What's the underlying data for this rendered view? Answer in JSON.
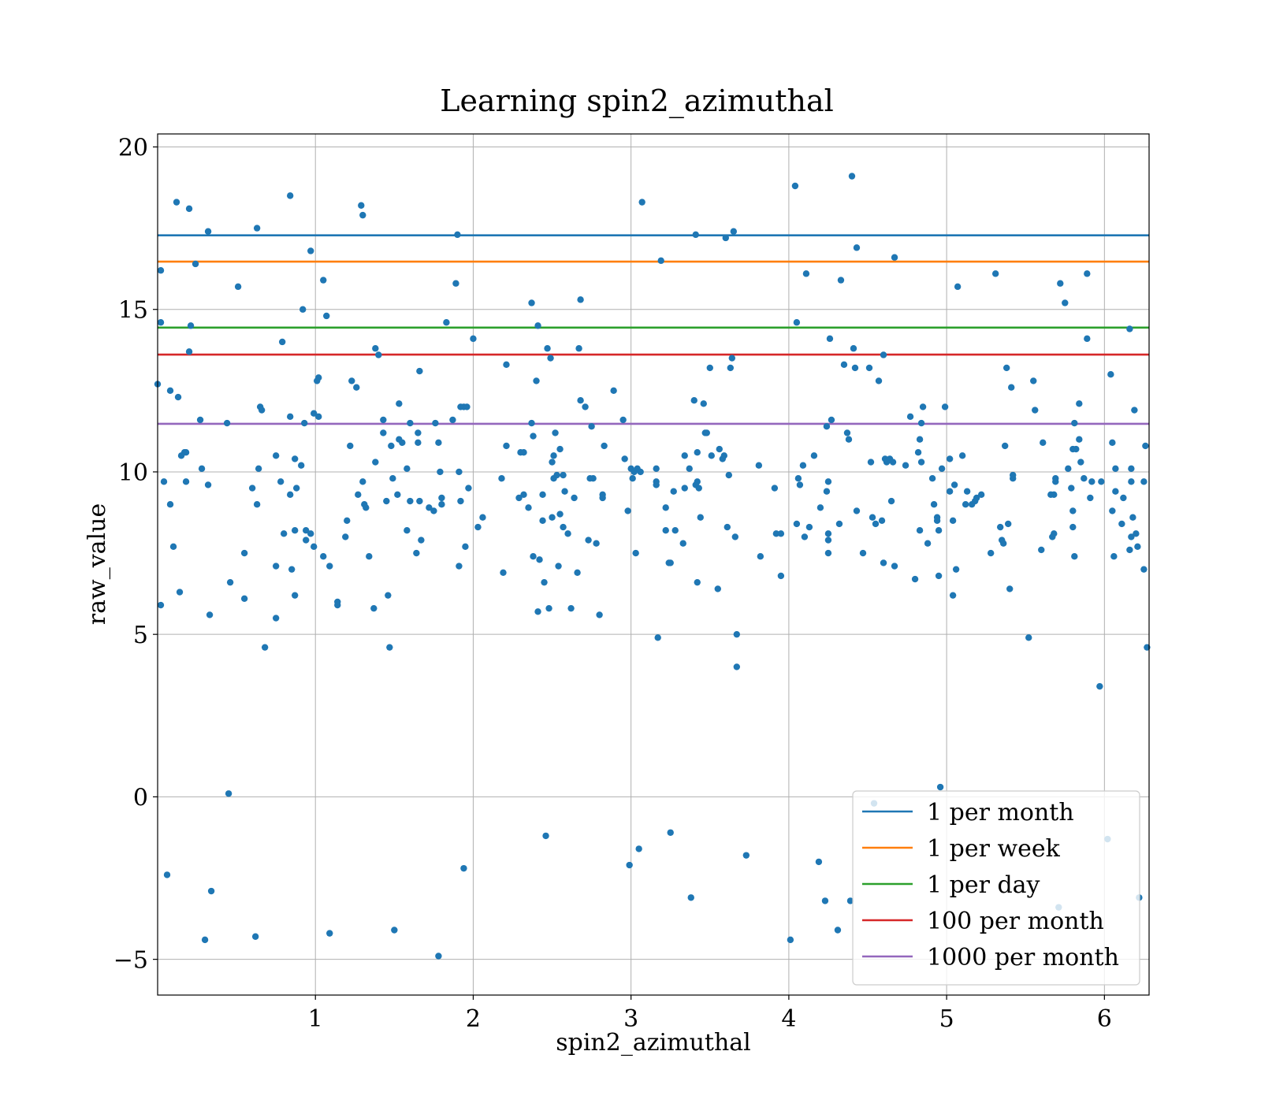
{
  "chart_data": {
    "type": "scatter",
    "title": "Learning spin2_azimuthal",
    "xlabel": "spin2_azimuthal",
    "ylabel": "raw_value",
    "xlim": [
      0,
      6.283
    ],
    "ylim": [
      -6.1,
      20.4
    ],
    "xticks": [
      1,
      2,
      3,
      4,
      5,
      6
    ],
    "xtick_labels": [
      "1",
      "2",
      "3",
      "4",
      "5",
      "6"
    ],
    "yticks": [
      -5,
      0,
      5,
      10,
      15,
      20
    ],
    "ytick_labels": [
      "−5",
      "0",
      "5",
      "10",
      "15",
      "20"
    ],
    "grid": true,
    "legend_position": "lower right",
    "point_color": "#1f77b4",
    "hlines": [
      {
        "name": "1 per month",
        "y": 17.28,
        "color": "#1f77b4"
      },
      {
        "name": "1 per week",
        "y": 16.47,
        "color": "#ff7f0e"
      },
      {
        "name": "1 per day",
        "y": 14.44,
        "color": "#2ca02c"
      },
      {
        "name": "100 per month",
        "y": 13.61,
        "color": "#d62728"
      },
      {
        "name": "1000 per month",
        "y": 11.48,
        "color": "#9467bd"
      }
    ],
    "points": [
      [
        0.0,
        12.7
      ],
      [
        0.02,
        16.2
      ],
      [
        0.02,
        14.6
      ],
      [
        0.02,
        5.9
      ],
      [
        0.04,
        9.7
      ],
      [
        0.06,
        -2.4
      ],
      [
        0.08,
        9.0
      ],
      [
        0.08,
        12.5
      ],
      [
        0.1,
        7.7
      ],
      [
        0.12,
        18.3
      ],
      [
        0.13,
        12.3
      ],
      [
        0.14,
        6.3
      ],
      [
        0.15,
        10.5
      ],
      [
        0.17,
        10.6
      ],
      [
        0.18,
        10.6
      ],
      [
        0.18,
        9.7
      ],
      [
        0.2,
        18.1
      ],
      [
        0.2,
        13.7
      ],
      [
        0.21,
        14.5
      ],
      [
        0.24,
        16.4
      ],
      [
        0.27,
        11.6
      ],
      [
        0.28,
        10.1
      ],
      [
        0.3,
        -4.4
      ],
      [
        0.32,
        9.6
      ],
      [
        0.32,
        17.4
      ],
      [
        0.33,
        5.6
      ],
      [
        0.34,
        -2.9
      ],
      [
        0.44,
        11.5
      ],
      [
        0.45,
        0.1
      ],
      [
        0.46,
        6.6
      ],
      [
        0.51,
        15.7
      ],
      [
        0.55,
        7.5
      ],
      [
        0.55,
        6.1
      ],
      [
        0.6,
        9.5
      ],
      [
        0.62,
        -4.3
      ],
      [
        0.63,
        17.5
      ],
      [
        0.63,
        9.0
      ],
      [
        0.64,
        10.1
      ],
      [
        0.65,
        12.0
      ],
      [
        0.66,
        11.9
      ],
      [
        0.68,
        4.6
      ],
      [
        0.75,
        10.5
      ],
      [
        0.75,
        7.1
      ],
      [
        0.75,
        5.5
      ],
      [
        0.78,
        9.7
      ],
      [
        0.79,
        14.0
      ],
      [
        0.8,
        8.1
      ],
      [
        0.84,
        18.5
      ],
      [
        0.84,
        11.7
      ],
      [
        0.84,
        9.3
      ],
      [
        0.85,
        7.0
      ],
      [
        0.87,
        10.4
      ],
      [
        0.87,
        8.2
      ],
      [
        0.87,
        6.2
      ],
      [
        0.88,
        9.5
      ],
      [
        0.91,
        10.2
      ],
      [
        0.92,
        15.0
      ],
      [
        0.93,
        11.5
      ],
      [
        0.94,
        8.2
      ],
      [
        0.94,
        7.9
      ],
      [
        0.97,
        16.8
      ],
      [
        0.97,
        8.1
      ],
      [
        0.99,
        11.8
      ],
      [
        0.99,
        7.7
      ],
      [
        1.01,
        12.8
      ],
      [
        1.02,
        12.9
      ],
      [
        1.02,
        11.7
      ],
      [
        1.05,
        15.9
      ],
      [
        1.05,
        7.4
      ],
      [
        1.07,
        14.8
      ],
      [
        1.09,
        7.1
      ],
      [
        1.09,
        -4.2
      ],
      [
        1.14,
        6.0
      ],
      [
        1.14,
        5.9
      ],
      [
        1.19,
        8.0
      ],
      [
        1.2,
        8.5
      ],
      [
        1.22,
        10.8
      ],
      [
        1.23,
        12.8
      ],
      [
        1.26,
        12.6
      ],
      [
        1.27,
        9.3
      ],
      [
        1.29,
        18.2
      ],
      [
        1.3,
        17.9
      ],
      [
        1.3,
        9.7
      ],
      [
        1.31,
        9.0
      ],
      [
        1.32,
        8.9
      ],
      [
        1.34,
        7.4
      ],
      [
        1.37,
        5.8
      ],
      [
        1.38,
        13.8
      ],
      [
        1.38,
        10.3
      ],
      [
        1.4,
        13.6
      ],
      [
        1.43,
        11.2
      ],
      [
        1.43,
        11.6
      ],
      [
        1.45,
        9.1
      ],
      [
        1.46,
        6.2
      ],
      [
        1.47,
        4.6
      ],
      [
        1.48,
        10.8
      ],
      [
        1.49,
        9.8
      ],
      [
        1.5,
        -4.1
      ],
      [
        1.52,
        9.3
      ],
      [
        1.53,
        12.1
      ],
      [
        1.53,
        11.0
      ],
      [
        1.55,
        10.9
      ],
      [
        1.58,
        10.1
      ],
      [
        1.58,
        8.2
      ],
      [
        1.6,
        11.5
      ],
      [
        1.6,
        9.1
      ],
      [
        1.64,
        7.5
      ],
      [
        1.65,
        11.2
      ],
      [
        1.65,
        10.9
      ],
      [
        1.66,
        13.1
      ],
      [
        1.66,
        9.1
      ],
      [
        1.67,
        7.9
      ],
      [
        1.72,
        8.9
      ],
      [
        1.75,
        8.8
      ],
      [
        1.76,
        11.5
      ],
      [
        1.78,
        10.9
      ],
      [
        1.78,
        -4.9
      ],
      [
        1.79,
        10.0
      ],
      [
        1.8,
        9.2
      ],
      [
        1.8,
        9.0
      ],
      [
        1.83,
        14.6
      ],
      [
        1.87,
        11.6
      ],
      [
        1.89,
        15.8
      ],
      [
        1.9,
        17.3
      ],
      [
        1.91,
        7.1
      ],
      [
        1.91,
        10.0
      ],
      [
        1.92,
        12.0
      ],
      [
        1.92,
        9.1
      ],
      [
        1.94,
        12.0
      ],
      [
        1.94,
        -2.2
      ],
      [
        1.95,
        7.7
      ],
      [
        1.96,
        12.0
      ],
      [
        1.97,
        9.5
      ],
      [
        2.0,
        14.1
      ],
      [
        2.03,
        8.3
      ],
      [
        2.06,
        8.6
      ],
      [
        2.18,
        9.8
      ],
      [
        2.19,
        6.9
      ],
      [
        2.21,
        13.3
      ],
      [
        2.21,
        10.8
      ],
      [
        2.29,
        9.2
      ],
      [
        2.3,
        10.6
      ],
      [
        2.32,
        10.6
      ],
      [
        2.32,
        9.3
      ],
      [
        2.35,
        8.9
      ],
      [
        2.37,
        15.2
      ],
      [
        2.37,
        11.5
      ],
      [
        2.38,
        11.1
      ],
      [
        2.38,
        7.4
      ],
      [
        2.4,
        12.8
      ],
      [
        2.41,
        14.5
      ],
      [
        2.41,
        5.7
      ],
      [
        2.42,
        7.3
      ],
      [
        2.44,
        9.3
      ],
      [
        2.44,
        8.5
      ],
      [
        2.45,
        6.6
      ],
      [
        2.46,
        -1.2
      ],
      [
        2.47,
        13.8
      ],
      [
        2.48,
        5.8
      ],
      [
        2.49,
        13.5
      ],
      [
        2.5,
        10.3
      ],
      [
        2.5,
        8.6
      ],
      [
        2.51,
        9.8
      ],
      [
        2.51,
        10.5
      ],
      [
        2.52,
        11.2
      ],
      [
        2.53,
        9.9
      ],
      [
        2.54,
        7.1
      ],
      [
        2.55,
        10.7
      ],
      [
        2.55,
        8.7
      ],
      [
        2.57,
        8.3
      ],
      [
        2.57,
        9.9
      ],
      [
        2.58,
        9.4
      ],
      [
        2.6,
        8.1
      ],
      [
        2.62,
        5.8
      ],
      [
        2.64,
        9.2
      ],
      [
        2.66,
        6.9
      ],
      [
        2.67,
        13.8
      ],
      [
        2.68,
        15.3
      ],
      [
        2.68,
        12.2
      ],
      [
        2.71,
        12.0
      ],
      [
        2.73,
        7.9
      ],
      [
        2.74,
        9.8
      ],
      [
        2.75,
        11.4
      ],
      [
        2.76,
        9.8
      ],
      [
        2.78,
        7.8
      ],
      [
        2.8,
        5.6
      ],
      [
        2.82,
        9.3
      ],
      [
        2.82,
        9.2
      ],
      [
        2.83,
        10.8
      ],
      [
        2.89,
        12.5
      ],
      [
        2.95,
        11.6
      ],
      [
        2.96,
        10.4
      ],
      [
        2.98,
        8.8
      ],
      [
        2.99,
        -2.1
      ],
      [
        3.0,
        10.1
      ],
      [
        3.01,
        9.8
      ],
      [
        3.02,
        10.0
      ],
      [
        3.03,
        7.5
      ],
      [
        3.04,
        10.1
      ],
      [
        3.05,
        -1.6
      ],
      [
        3.06,
        10.0
      ],
      [
        3.07,
        18.3
      ],
      [
        3.16,
        9.7
      ],
      [
        3.16,
        9.6
      ],
      [
        3.16,
        10.1
      ],
      [
        3.17,
        4.9
      ],
      [
        3.19,
        16.5
      ],
      [
        3.22,
        8.2
      ],
      [
        3.22,
        8.9
      ],
      [
        3.24,
        7.2
      ],
      [
        3.25,
        7.2
      ],
      [
        3.25,
        -1.1
      ],
      [
        3.27,
        9.4
      ],
      [
        3.28,
        8.2
      ],
      [
        3.33,
        7.8
      ],
      [
        3.34,
        9.5
      ],
      [
        3.34,
        10.5
      ],
      [
        3.37,
        10.1
      ],
      [
        3.38,
        -3.1
      ],
      [
        3.4,
        12.2
      ],
      [
        3.41,
        17.3
      ],
      [
        3.41,
        9.6
      ],
      [
        3.42,
        6.6
      ],
      [
        3.42,
        10.6
      ],
      [
        3.42,
        9.7
      ],
      [
        3.43,
        9.5
      ],
      [
        3.44,
        8.6
      ],
      [
        3.46,
        12.1
      ],
      [
        3.47,
        11.2
      ],
      [
        3.48,
        11.2
      ],
      [
        3.5,
        13.2
      ],
      [
        3.51,
        10.5
      ],
      [
        3.55,
        6.4
      ],
      [
        3.56,
        10.7
      ],
      [
        3.58,
        10.4
      ],
      [
        3.59,
        10.5
      ],
      [
        3.6,
        17.2
      ],
      [
        3.61,
        8.3
      ],
      [
        3.62,
        9.9
      ],
      [
        3.63,
        13.2
      ],
      [
        3.64,
        13.5
      ],
      [
        3.65,
        17.4
      ],
      [
        3.66,
        8.0
      ],
      [
        3.67,
        4.0
      ],
      [
        3.67,
        5.0
      ],
      [
        3.73,
        -1.8
      ],
      [
        3.81,
        10.2
      ],
      [
        3.82,
        7.4
      ],
      [
        3.91,
        9.5
      ],
      [
        3.92,
        8.1
      ],
      [
        3.95,
        8.1
      ],
      [
        3.95,
        6.8
      ],
      [
        4.01,
        -4.4
      ],
      [
        4.04,
        18.8
      ],
      [
        4.05,
        14.6
      ],
      [
        4.05,
        8.4
      ],
      [
        4.06,
        9.8
      ],
      [
        4.07,
        9.6
      ],
      [
        4.09,
        10.2
      ],
      [
        4.1,
        8.0
      ],
      [
        4.11,
        16.1
      ],
      [
        4.13,
        8.3
      ],
      [
        4.16,
        10.5
      ],
      [
        4.19,
        -2.0
      ],
      [
        4.2,
        8.9
      ],
      [
        4.23,
        -3.2
      ],
      [
        4.24,
        11.4
      ],
      [
        4.24,
        9.4
      ],
      [
        4.25,
        9.7
      ],
      [
        4.25,
        8.1
      ],
      [
        4.25,
        7.5
      ],
      [
        4.25,
        7.9
      ],
      [
        4.26,
        14.1
      ],
      [
        4.27,
        11.6
      ],
      [
        4.31,
        -4.1
      ],
      [
        4.32,
        8.4
      ],
      [
        4.33,
        15.9
      ],
      [
        4.35,
        13.3
      ],
      [
        4.37,
        11.2
      ],
      [
        4.38,
        11.0
      ],
      [
        4.39,
        -3.2
      ],
      [
        4.4,
        19.1
      ],
      [
        4.41,
        13.8
      ],
      [
        4.42,
        13.2
      ],
      [
        4.43,
        16.9
      ],
      [
        4.43,
        8.8
      ],
      [
        4.47,
        7.5
      ],
      [
        4.51,
        13.2
      ],
      [
        4.52,
        10.3
      ],
      [
        4.53,
        8.6
      ],
      [
        4.54,
        -0.2
      ],
      [
        4.55,
        8.4
      ],
      [
        4.57,
        12.8
      ],
      [
        4.59,
        8.5
      ],
      [
        4.6,
        13.6
      ],
      [
        4.6,
        7.2
      ],
      [
        4.61,
        10.4
      ],
      [
        4.62,
        10.3
      ],
      [
        4.64,
        10.4
      ],
      [
        4.65,
        9.1
      ],
      [
        4.66,
        10.3
      ],
      [
        4.67,
        16.6
      ],
      [
        4.67,
        7.1
      ],
      [
        4.74,
        10.2
      ],
      [
        4.77,
        11.7
      ],
      [
        4.8,
        6.7
      ],
      [
        4.82,
        10.6
      ],
      [
        4.83,
        11.0
      ],
      [
        4.83,
        8.2
      ],
      [
        4.84,
        10.3
      ],
      [
        4.84,
        11.5
      ],
      [
        4.85,
        12.0
      ],
      [
        4.88,
        7.8
      ],
      [
        4.91,
        9.8
      ],
      [
        4.92,
        9.0
      ],
      [
        4.94,
        8.5
      ],
      [
        4.94,
        8.6
      ],
      [
        4.95,
        6.8
      ],
      [
        4.95,
        8.2
      ],
      [
        4.96,
        0.3
      ],
      [
        4.97,
        10.1
      ],
      [
        4.99,
        12.0
      ],
      [
        5.02,
        9.4
      ],
      [
        5.02,
        10.4
      ],
      [
        5.04,
        6.2
      ],
      [
        5.04,
        8.5
      ],
      [
        5.05,
        9.6
      ],
      [
        5.06,
        7.0
      ],
      [
        5.07,
        15.7
      ],
      [
        5.1,
        10.5
      ],
      [
        5.12,
        9.0
      ],
      [
        5.13,
        9.4
      ],
      [
        5.16,
        9.0
      ],
      [
        5.18,
        9.1
      ],
      [
        5.19,
        9.2
      ],
      [
        5.22,
        9.3
      ],
      [
        5.28,
        7.5
      ],
      [
        5.31,
        16.1
      ],
      [
        5.34,
        8.3
      ],
      [
        5.35,
        7.9
      ],
      [
        5.36,
        7.8
      ],
      [
        5.37,
        10.8
      ],
      [
        5.38,
        13.2
      ],
      [
        5.39,
        8.4
      ],
      [
        5.4,
        6.4
      ],
      [
        5.41,
        12.6
      ],
      [
        5.42,
        9.8
      ],
      [
        5.42,
        9.9
      ],
      [
        5.52,
        4.9
      ],
      [
        5.55,
        12.8
      ],
      [
        5.56,
        11.9
      ],
      [
        5.6,
        7.6
      ],
      [
        5.61,
        10.9
      ],
      [
        5.66,
        9.3
      ],
      [
        5.67,
        8.0
      ],
      [
        5.68,
        8.1
      ],
      [
        5.68,
        9.3
      ],
      [
        5.69,
        9.7
      ],
      [
        5.69,
        9.8
      ],
      [
        5.71,
        -3.4
      ],
      [
        5.72,
        15.8
      ],
      [
        5.75,
        15.2
      ],
      [
        5.77,
        10.1
      ],
      [
        5.79,
        9.5
      ],
      [
        5.8,
        8.8
      ],
      [
        5.8,
        10.7
      ],
      [
        5.8,
        8.3
      ],
      [
        5.81,
        7.4
      ],
      [
        5.81,
        11.5
      ],
      [
        5.82,
        10.7
      ],
      [
        5.84,
        12.1
      ],
      [
        5.84,
        11.0
      ],
      [
        5.85,
        10.3
      ],
      [
        5.87,
        9.8
      ],
      [
        5.89,
        16.1
      ],
      [
        5.89,
        14.1
      ],
      [
        5.91,
        9.2
      ],
      [
        5.92,
        9.7
      ],
      [
        5.97,
        3.4
      ],
      [
        5.98,
        9.7
      ],
      [
        6.02,
        -1.3
      ],
      [
        6.04,
        13.0
      ],
      [
        6.05,
        8.8
      ],
      [
        6.05,
        10.9
      ],
      [
        6.06,
        7.4
      ],
      [
        6.07,
        10.1
      ],
      [
        6.07,
        9.4
      ],
      [
        6.11,
        8.4
      ],
      [
        6.12,
        9.2
      ],
      [
        6.16,
        14.4
      ],
      [
        6.16,
        7.6
      ],
      [
        6.17,
        8.0
      ],
      [
        6.17,
        9.7
      ],
      [
        6.17,
        10.1
      ],
      [
        6.18,
        8.6
      ],
      [
        6.19,
        11.9
      ],
      [
        6.2,
        8.1
      ],
      [
        6.21,
        7.7
      ],
      [
        6.22,
        -3.1
      ],
      [
        6.25,
        9.7
      ],
      [
        6.25,
        7.0
      ],
      [
        6.26,
        10.8
      ],
      [
        6.27,
        4.6
      ]
    ]
  }
}
